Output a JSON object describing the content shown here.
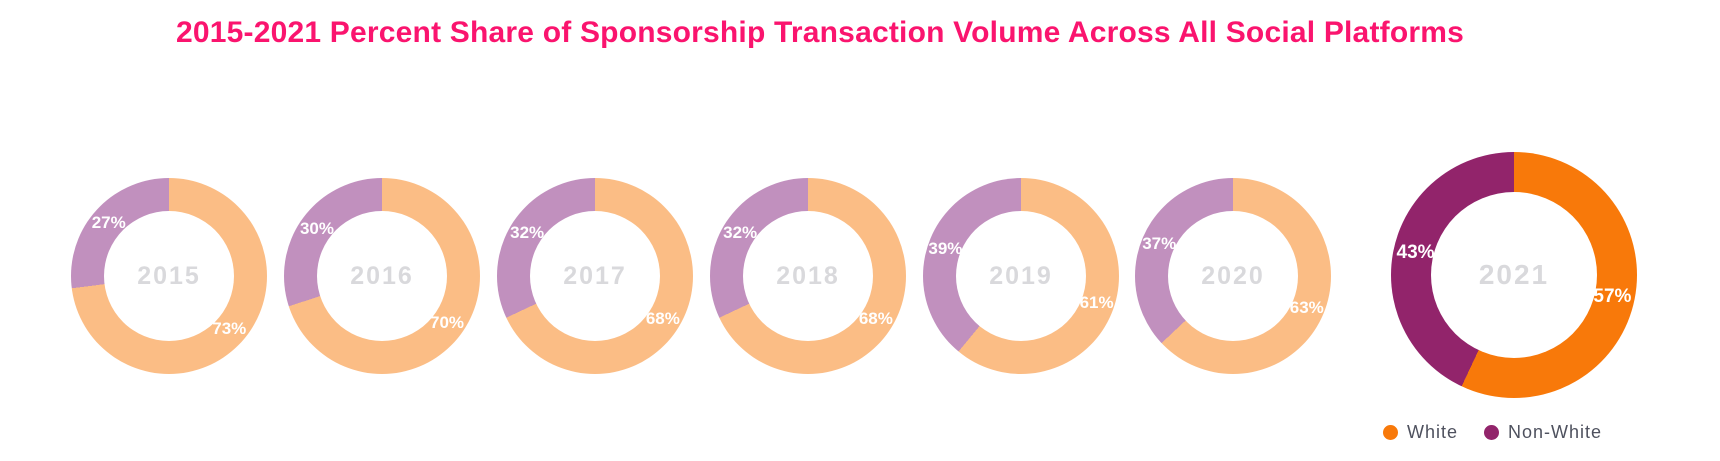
{
  "chart_data": {
    "type": "pie",
    "variant": "donut-series",
    "title": "2015-2021 Percent Share of Sponsorship Transaction Volume Across All Social Platforms",
    "title_color": "#FA146E",
    "unit": "%",
    "categories": [
      "2015",
      "2016",
      "2017",
      "2018",
      "2019",
      "2020",
      "2021"
    ],
    "series": [
      {
        "name": "White",
        "values": [
          73,
          70,
          68,
          68,
          61,
          63,
          57
        ]
      },
      {
        "name": "Non-White",
        "values": [
          27,
          30,
          32,
          32,
          39,
          37,
          43
        ]
      }
    ],
    "legend_position": "bottom-right",
    "legend": [
      {
        "label": "White",
        "color": "#F8790A"
      },
      {
        "label": "Non-White",
        "color": "#92246B"
      }
    ],
    "donuts": [
      {
        "year": "2015",
        "white_pct": 73,
        "non_white_pct": 27,
        "white_label": "73%",
        "non_white_label": "27%",
        "white_color": "#FBBD85",
        "non_white_color": "#C190BE",
        "emphasized": false
      },
      {
        "year": "2016",
        "white_pct": 70,
        "non_white_pct": 30,
        "white_label": "70%",
        "non_white_label": "30%",
        "white_color": "#FBBD85",
        "non_white_color": "#C190BE",
        "emphasized": false
      },
      {
        "year": "2017",
        "white_pct": 68,
        "non_white_pct": 32,
        "white_label": "68%",
        "non_white_label": "32%",
        "white_color": "#FBBD85",
        "non_white_color": "#C190BE",
        "emphasized": false
      },
      {
        "year": "2018",
        "white_pct": 68,
        "non_white_pct": 32,
        "white_label": "68%",
        "non_white_label": "32%",
        "white_color": "#FBBD85",
        "non_white_color": "#C190BE",
        "emphasized": false
      },
      {
        "year": "2019",
        "white_pct": 61,
        "non_white_pct": 39,
        "white_label": "61%",
        "non_white_label": "39%",
        "white_color": "#FBBD85",
        "non_white_color": "#C190BE",
        "emphasized": false
      },
      {
        "year": "2020",
        "white_pct": 63,
        "non_white_pct": 37,
        "white_label": "63%",
        "non_white_label": "37%",
        "white_color": "#FBBD85",
        "non_white_color": "#C190BE",
        "emphasized": false
      },
      {
        "year": "2021",
        "white_pct": 57,
        "non_white_pct": 43,
        "white_label": "57%",
        "non_white_label": "43%",
        "white_color": "#F8790A",
        "non_white_color": "#92246B",
        "emphasized": true
      }
    ],
    "year_label_color": "#D9D9DC",
    "pct_label_color": "#FFFFFF",
    "legend_text_color": "#4E515E"
  }
}
